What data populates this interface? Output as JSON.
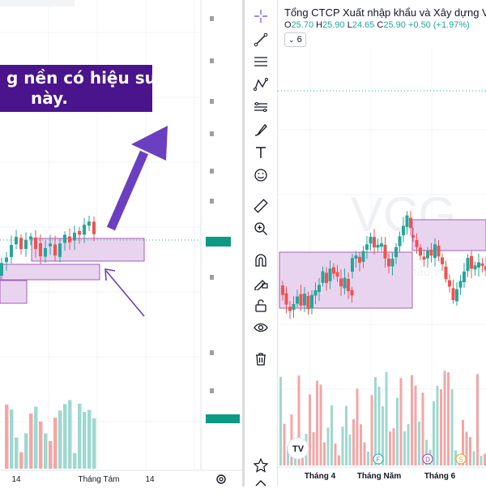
{
  "left_chart": {
    "banner_lines": [
      "g nền có hiệu suất",
      "này."
    ],
    "x_labels": [
      "14",
      "Tháng Tám",
      "14"
    ],
    "settings_icon": "gear-icon"
  },
  "right_chart": {
    "symbol_title": "Tổng CTCP Xuất nhập khẩu và Xây dựng Việ",
    "ohlc": {
      "open_label": "O",
      "open": "25.70",
      "high_label": "H",
      "high": "25.90",
      "low_label": "L",
      "low": "24.65",
      "close_label": "C",
      "close": "25.90",
      "change": "+0.50 (+1.97%)"
    },
    "interval_value": "6",
    "watermark_ticker": "VCG",
    "watermark_name": "Tổng CTCP Xuất nhập khẩu v",
    "x_labels": [
      "Tháng 4",
      "Tháng Năm",
      "Tháng 6"
    ],
    "event_badges": [
      "F",
      "D",
      "S"
    ],
    "logo_text": "TV"
  },
  "toolbar": {
    "tools": [
      "crosshair-icon",
      "trend-line-icon",
      "horizontal-lines-icon",
      "pattern-icon",
      "fib-icon",
      "brush-icon",
      "text-icon",
      "emoji-icon",
      "ruler-icon",
      "zoom-in-icon",
      "magnet-icon",
      "lock-draw-icon",
      "unlock-icon",
      "eye-icon",
      "trash-icon"
    ],
    "bottom_tools": [
      "star-icon",
      "chevron-up-icon"
    ]
  },
  "colors": {
    "up": "#26a69a",
    "down": "#ef5350",
    "up_volume": "#9fd8cf",
    "down_volume": "#f4a6a6",
    "zone_fill": "#e9d4f0",
    "zone_border": "#a35fb8",
    "arrow": "#6a3fc1",
    "banner": "#4a148c"
  }
}
